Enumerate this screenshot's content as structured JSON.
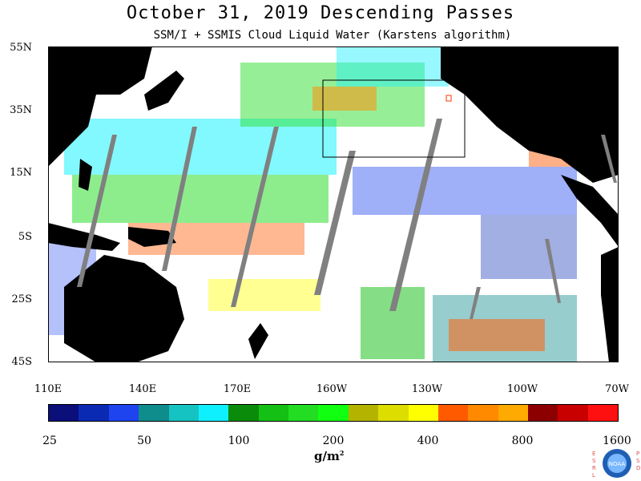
{
  "title": "October 31, 2019  Descending Passes",
  "subtitle": "SSM/I + SSMIS Cloud Liquid Water (Karstens algorithm)",
  "lat_labels": [
    "55N",
    "35N",
    "15N",
    "5S",
    "25S",
    "45S"
  ],
  "lon_labels": [
    "110E",
    "140E",
    "170E",
    "160W",
    "130W",
    "100W",
    "70W"
  ],
  "colorbar": {
    "colors": [
      "#0a0f7a",
      "#0b2ab4",
      "#1e44f0",
      "#0f8c8c",
      "#16c3c3",
      "#0ff0ff",
      "#0a8c0a",
      "#14c014",
      "#22dd22",
      "#11ff11",
      "#b4b400",
      "#dddd00",
      "#ffff00",
      "#ff5a00",
      "#ff8a00",
      "#ffaa00",
      "#8c0000",
      "#c80000",
      "#ff1010"
    ],
    "tick_labels": [
      "25",
      "50",
      "100",
      "200",
      "400",
      "800",
      "1600"
    ],
    "units": "g/m",
    "units_sup": "2"
  },
  "logo": {
    "left_text": "ESRL",
    "right_text": "PSD",
    "center_text": "NOAA"
  },
  "colors": {
    "land": "#000000",
    "ocean": "#ffffff",
    "swath_gap": "#808080"
  }
}
